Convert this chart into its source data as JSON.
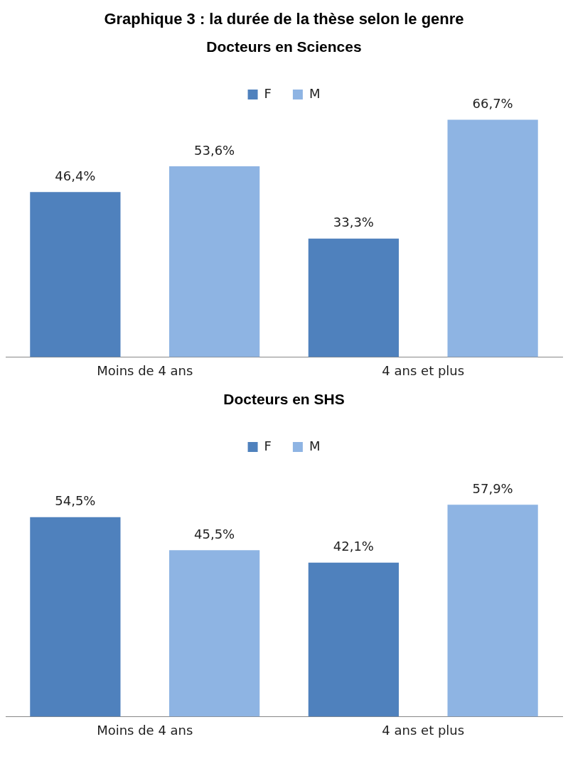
{
  "chart_data": [
    {
      "type": "bar",
      "title": "Graphique 3 : la durée de la thèse selon le genre",
      "subtitle": "Docteurs en Sciences",
      "categories": [
        "Moins de 4 ans",
        "4 ans et plus"
      ],
      "legend": "top",
      "grid": false,
      "series": [
        {
          "name": "F",
          "color": "#4f81bd",
          "values": [
            46.4,
            33.3
          ],
          "value_labels": [
            "46,4%",
            "33,3%"
          ]
        },
        {
          "name": "M",
          "color": "#8eb4e3",
          "values": [
            53.6,
            66.7
          ],
          "value_labels": [
            "53,6%",
            "66,7%"
          ]
        }
      ]
    },
    {
      "type": "bar",
      "title": "Docteurs en SHS",
      "categories": [
        "Moins de 4 ans",
        "4 ans et plus"
      ],
      "legend": "top",
      "grid": false,
      "series": [
        {
          "name": "F",
          "color": "#4f81bd",
          "values": [
            54.5,
            42.1
          ],
          "value_labels": [
            "54,5%",
            "42,1%"
          ]
        },
        {
          "name": "M",
          "color": "#8eb4e3",
          "values": [
            45.5,
            57.9
          ],
          "value_labels": [
            "45,5%",
            "57,9%"
          ]
        }
      ]
    }
  ]
}
